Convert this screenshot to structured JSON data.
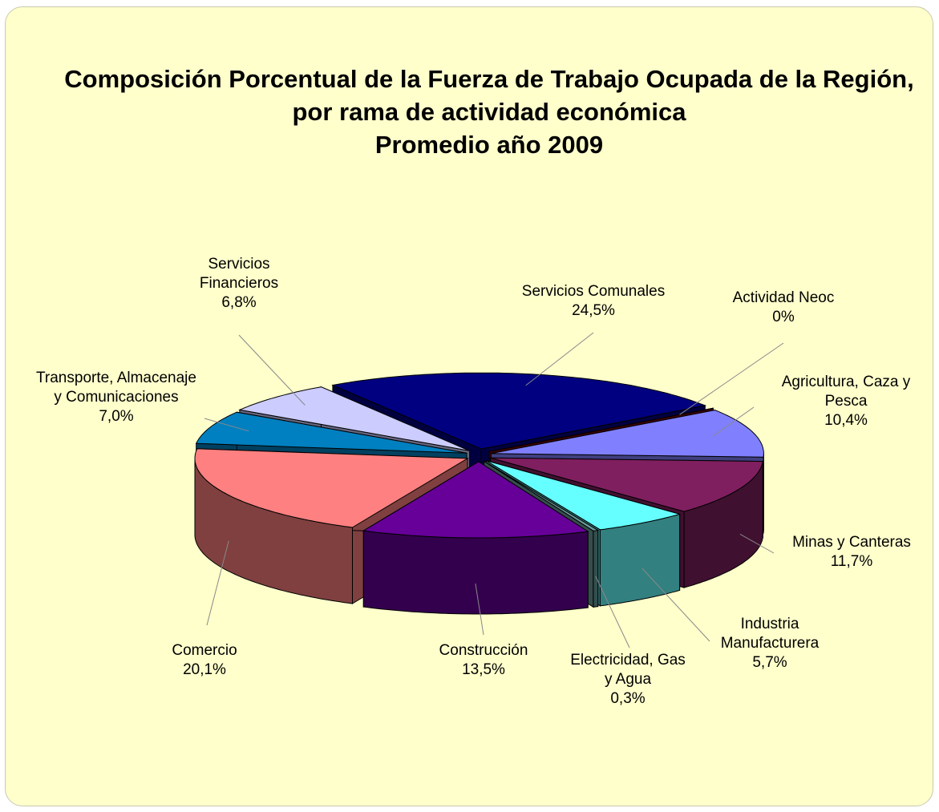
{
  "chart_data": {
    "type": "pie",
    "title": "Composición Porcentual de la Fuerza de Trabajo Ocupada de la Región, por rama de actividad económica",
    "subtitle": "Promedio año 2009",
    "categories": [
      "Servicios Comunales",
      "Actividad Neoc",
      "Agricultura, Caza y Pesca",
      "Minas y Canteras",
      "Industria Manufacturera",
      "Electricidad, Gas y Agua",
      "Construcción",
      "Comercio",
      "Transporte, Almacenaje y Comunicaciones",
      "Servicios Financieros"
    ],
    "values": [
      24.5,
      0,
      10.4,
      11.7,
      5.7,
      0.3,
      13.5,
      20.1,
      7.0,
      6.8
    ],
    "value_labels": [
      "24,5%",
      "0%",
      "10,4%",
      "11,7%",
      "5,7%",
      "0,3%",
      "13,5%",
      "20,1%",
      "7,0%",
      "6,8%"
    ],
    "colors": [
      "#000080",
      "#800000",
      "#8080ff",
      "#7f1f5f",
      "#66ffff",
      "#6a9a9a",
      "#660099",
      "#ff8080",
      "#0080c0",
      "#ccccff"
    ]
  }
}
